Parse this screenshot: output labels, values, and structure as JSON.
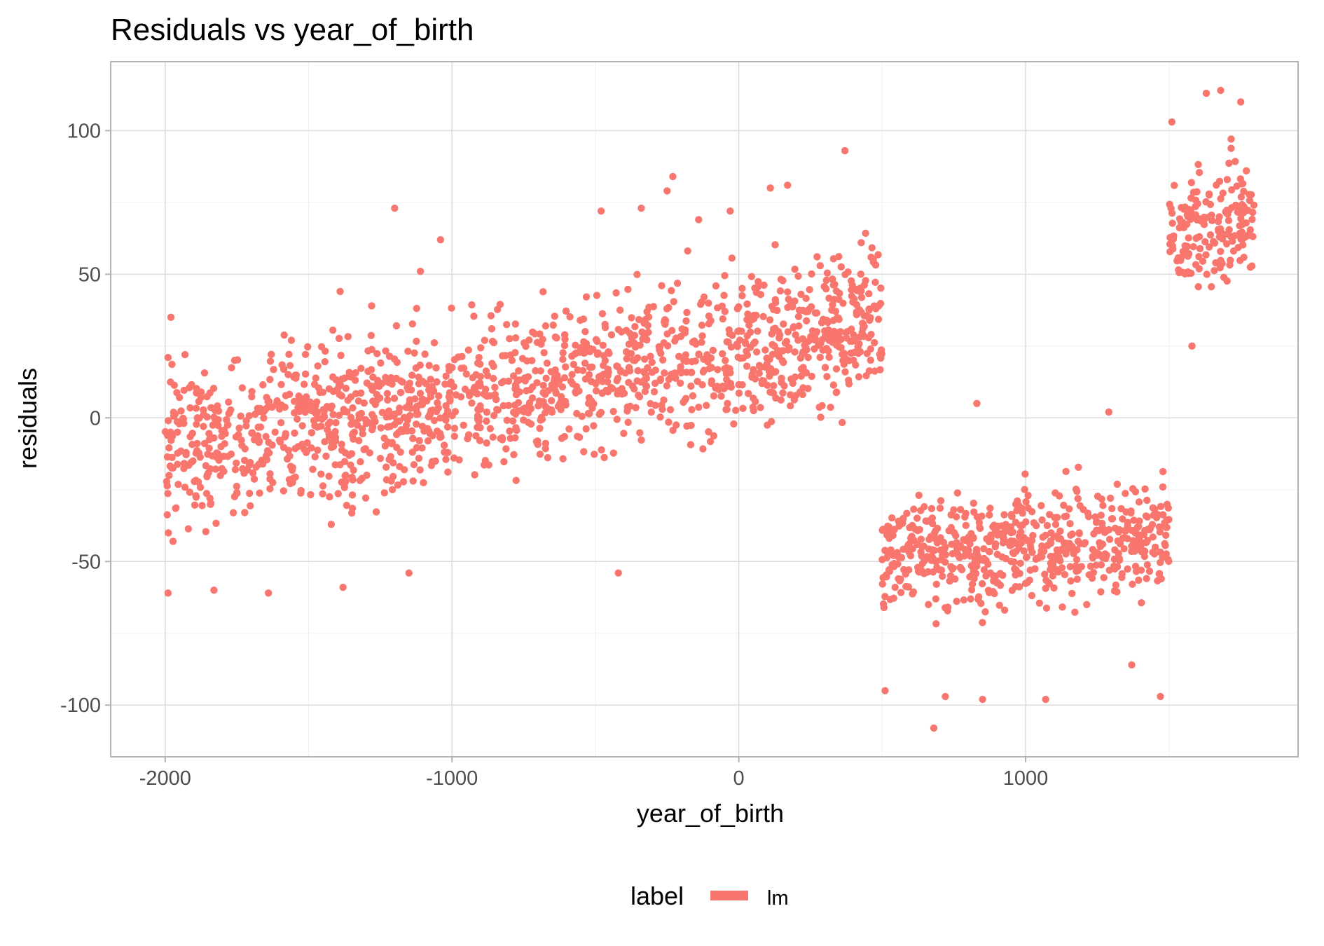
{
  "chart_data": {
    "type": "scatter",
    "title": "Residuals vs year_of_birth",
    "xlabel": "year_of_birth",
    "ylabel": "residuals",
    "xlim": [
      -2190,
      1950
    ],
    "ylim": [
      -118,
      124
    ],
    "x_ticks": [
      -2000,
      -1000,
      0,
      1000
    ],
    "x_tick_labels": [
      "-2000",
      "-1000",
      "0",
      "1000"
    ],
    "y_ticks": [
      -100,
      -50,
      0,
      50,
      100
    ],
    "y_tick_labels": [
      "-100",
      "-50",
      "0",
      "50",
      "100"
    ],
    "grid": true,
    "legend": {
      "title": "label",
      "placement": "bottom",
      "entries": [
        "lm"
      ]
    },
    "series": [
      {
        "name": "lm",
        "color": "#F8766D",
        "segments": [
          {
            "x_range": [
              -2000,
              500
            ],
            "trend": [
              [
                -2000,
                -12
              ],
              [
                -1000,
                5
              ],
              [
                0,
                25
              ],
              [
                500,
                35
              ]
            ],
            "spread": 24
          },
          {
            "x_range": [
              500,
              1500
            ],
            "trend": [
              [
                500,
                -48
              ],
              [
                1000,
                -46
              ],
              [
                1500,
                -40
              ]
            ],
            "spread": 17
          },
          {
            "x_range": [
              1500,
              1800
            ],
            "trend": [
              [
                1500,
                65
              ],
              [
                1800,
                70
              ]
            ],
            "spread": 18
          }
        ],
        "points": [
          [
            -1990,
            21
          ],
          [
            -1980,
            35
          ],
          [
            -1990,
            -61
          ],
          [
            -1830,
            -60
          ],
          [
            -1640,
            -61
          ],
          [
            -1560,
            27
          ],
          [
            -1390,
            44
          ],
          [
            -1380,
            -59
          ],
          [
            -1200,
            73
          ],
          [
            -1150,
            -54
          ],
          [
            -1110,
            51
          ],
          [
            -1040,
            62
          ],
          [
            -480,
            72
          ],
          [
            -420,
            -54
          ],
          [
            -340,
            73
          ],
          [
            -230,
            84
          ],
          [
            -250,
            79
          ],
          [
            -140,
            69
          ],
          [
            -30,
            72
          ],
          [
            110,
            80
          ],
          [
            170,
            81
          ],
          [
            370,
            93
          ],
          [
            510,
            -95
          ],
          [
            680,
            -108
          ],
          [
            720,
            -97
          ],
          [
            850,
            -98
          ],
          [
            1070,
            -98
          ],
          [
            1370,
            -86
          ],
          [
            1470,
            -97
          ],
          [
            1630,
            113
          ],
          [
            1680,
            114
          ],
          [
            1750,
            110
          ],
          [
            1510,
            103
          ],
          [
            1580,
            25
          ],
          [
            830,
            5
          ],
          [
            1290,
            2
          ]
        ]
      }
    ]
  }
}
